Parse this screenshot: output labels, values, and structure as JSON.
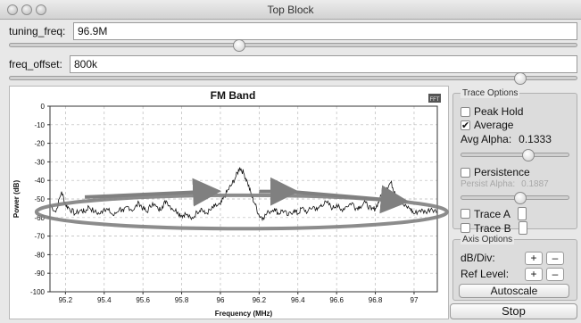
{
  "window": {
    "title": "Top Block"
  },
  "controls": {
    "tuning_freq": {
      "label": "tuning_freq:",
      "value": "96.9M",
      "slider_fraction": 0.405
    },
    "freq_offset": {
      "label": "freq_offset:",
      "value": "800k",
      "slider_fraction": 0.9
    }
  },
  "fft_badge": "FFT",
  "trace_options": {
    "title": "Trace Options",
    "peak_hold": {
      "label": "Peak Hold",
      "checked": false
    },
    "average": {
      "label": "Average",
      "checked": true
    },
    "avg_alpha": {
      "label": "Avg Alpha:",
      "value": "0.1333",
      "slider_fraction": 0.62
    },
    "persistence": {
      "label": "Persistence",
      "checked": false
    },
    "persist_alpha": {
      "label": "Persist Alpha:",
      "value": "0.1887",
      "slider_fraction": 0.55
    },
    "trace_a": {
      "label": "Trace A",
      "checked": false
    },
    "trace_b": {
      "label": "Trace B",
      "checked": false
    }
  },
  "axis_options": {
    "title": "Axis Options",
    "db_div": {
      "label": "dB/Div:",
      "plus": "+",
      "minus": "–"
    },
    "ref_level": {
      "label": "Ref Level:",
      "plus": "+",
      "minus": "–"
    },
    "autoscale": "Autoscale"
  },
  "stop_button": "Stop",
  "colors": {
    "trace": "#111111",
    "grid": "#b9b9b9",
    "annotation": "#808080"
  },
  "chart_data": {
    "type": "line",
    "title": "FM Band",
    "xlabel": "Frequency (MHz)",
    "ylabel": "Power (dB)",
    "xlim": [
      95.12,
      97.12
    ],
    "ylim": [
      -100,
      0
    ],
    "xticks": [
      95.2,
      95.4,
      95.6,
      95.8,
      96,
      96.2,
      96.4,
      96.6,
      96.8,
      97
    ],
    "xtick_labels": [
      "95.2",
      "95.4",
      "95.6",
      "95.8",
      "96",
      "96.2",
      "96.4",
      "96.6",
      "96.8",
      "97"
    ],
    "yticks": [
      0,
      -10,
      -20,
      -30,
      -40,
      -50,
      -60,
      -70,
      -80,
      -90,
      -100
    ],
    "ytick_labels": [
      "0",
      "-10",
      "-20",
      "-30",
      "-40",
      "-50",
      "-60",
      "-70",
      "-80",
      "-90",
      "-100"
    ],
    "grid": true,
    "series": [
      {
        "x": [
          95.12,
          95.15,
          95.18,
          95.2,
          95.22,
          95.25,
          95.28,
          95.3,
          95.32,
          95.35,
          95.38,
          95.4,
          95.42,
          95.45,
          95.48,
          95.5,
          95.52,
          95.55,
          95.58,
          95.6,
          95.62,
          95.65,
          95.68,
          95.7,
          95.72,
          95.75,
          95.78,
          95.8,
          95.82,
          95.85,
          95.88,
          95.9,
          95.92,
          95.95,
          95.97,
          96.0,
          96.02,
          96.04,
          96.06,
          96.08,
          96.1,
          96.12,
          96.14,
          96.16,
          96.18,
          96.2,
          96.22,
          96.25,
          96.28,
          96.3,
          96.32,
          96.35,
          96.38,
          96.4,
          96.42,
          96.45,
          96.48,
          96.5,
          96.52,
          96.55,
          96.58,
          96.6,
          96.62,
          96.65,
          96.68,
          96.7,
          96.72,
          96.75,
          96.78,
          96.8,
          96.82,
          96.84,
          96.86,
          96.88,
          96.9,
          96.92,
          96.95,
          96.98,
          97.0,
          97.03,
          97.06,
          97.09,
          97.12
        ],
        "y": [
          -53,
          -57,
          -46,
          -53,
          -55,
          -58,
          -56,
          -57,
          -54,
          -57,
          -58,
          -55,
          -56,
          -59,
          -55,
          -57,
          -54,
          -56,
          -52,
          -55,
          -57,
          -52,
          -56,
          -54,
          -51,
          -55,
          -57,
          -59,
          -58,
          -61,
          -57,
          -55,
          -58,
          -56,
          -54,
          -53,
          -49,
          -45,
          -42,
          -38,
          -33,
          -36,
          -41,
          -48,
          -53,
          -59,
          -60,
          -57,
          -55,
          -58,
          -56,
          -59,
          -56,
          -58,
          -55,
          -57,
          -54,
          -56,
          -53,
          -52,
          -55,
          -53,
          -56,
          -54,
          -52,
          -55,
          -54,
          -52,
          -56,
          -55,
          -51,
          -46,
          -44,
          -41,
          -46,
          -49,
          -54,
          -55,
          -58,
          -56,
          -57,
          -55,
          -57
        ]
      }
    ],
    "annotations": [
      {
        "type": "ellipse",
        "cx": 96.11,
        "cy": -57,
        "rx": 1.06,
        "ry": 9
      },
      {
        "type": "arrow",
        "x1": 95.3,
        "y1": -49,
        "x2": 95.95,
        "y2": -46
      },
      {
        "type": "arrow",
        "x1": 96.2,
        "y1": -46,
        "x2": 96.35,
        "y2": -46
      },
      {
        "type": "arrow",
        "x1": 96.35,
        "y1": -46,
        "x2": 96.92,
        "y2": -51
      }
    ]
  }
}
